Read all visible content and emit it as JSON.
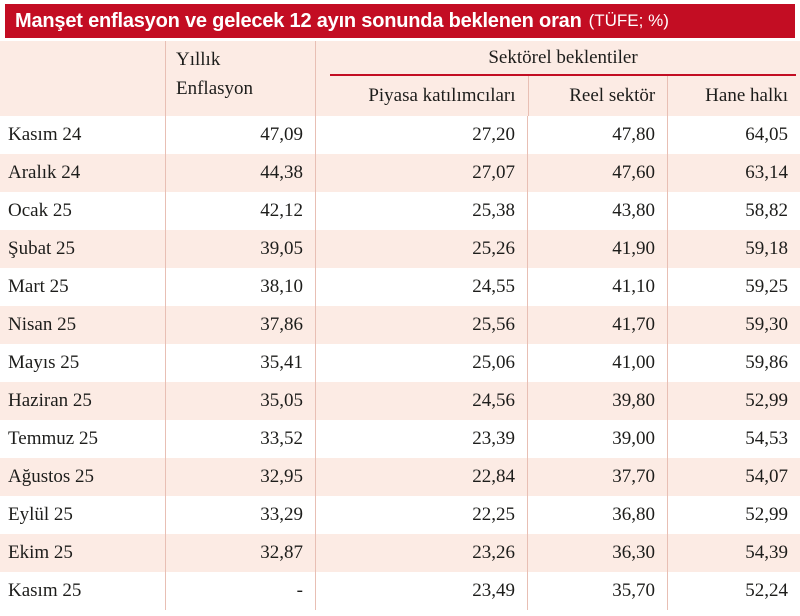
{
  "banner": {
    "title": "Manşet enflasyon ve gelecek 12 ayın sonunda beklenen oran",
    "unit": "(TÜFE; %)"
  },
  "chart_data": {
    "type": "table",
    "title": "Manşet enflasyon ve gelecek 12 ayın sonunda beklenen oran (TÜFE; %)",
    "annual_header": "Yıllık Enflasyon",
    "group_header": "Sektörel beklentiler",
    "sub_headers": [
      "Piyasa katılımcıları",
      "Reel sektör",
      "Hane halkı"
    ],
    "rows": [
      {
        "month": "Kasım 24",
        "annual": "47,09",
        "market_participants": "27,20",
        "real_sector": "47,80",
        "households": "64,05"
      },
      {
        "month": "Aralık 24",
        "annual": "44,38",
        "market_participants": "27,07",
        "real_sector": "47,60",
        "households": "63,14"
      },
      {
        "month": "Ocak 25",
        "annual": "42,12",
        "market_participants": "25,38",
        "real_sector": "43,80",
        "households": "58,82"
      },
      {
        "month": "Şubat 25",
        "annual": "39,05",
        "market_participants": "25,26",
        "real_sector": "41,90",
        "households": "59,18"
      },
      {
        "month": "Mart 25",
        "annual": "38,10",
        "market_participants": "24,55",
        "real_sector": "41,10",
        "households": "59,25"
      },
      {
        "month": "Nisan 25",
        "annual": "37,86",
        "market_participants": "25,56",
        "real_sector": "41,70",
        "households": "59,30"
      },
      {
        "month": "Mayıs 25",
        "annual": "35,41",
        "market_participants": "25,06",
        "real_sector": "41,00",
        "households": "59,86"
      },
      {
        "month": "Haziran 25",
        "annual": "35,05",
        "market_participants": "24,56",
        "real_sector": "39,80",
        "households": "52,99"
      },
      {
        "month": "Temmuz 25",
        "annual": "33,52",
        "market_participants": "23,39",
        "real_sector": "39,00",
        "households": "54,53"
      },
      {
        "month": "Ağustos 25",
        "annual": "32,95",
        "market_participants": "22,84",
        "real_sector": "37,70",
        "households": "54,07"
      },
      {
        "month": "Eylül 25",
        "annual": "33,29",
        "market_participants": "22,25",
        "real_sector": "36,80",
        "households": "52,99"
      },
      {
        "month": "Ekim 25",
        "annual": "32,87",
        "market_participants": "23,26",
        "real_sector": "36,30",
        "households": "54,39"
      },
      {
        "month": "Kasım 25",
        "annual": "-",
        "market_participants": "23,49",
        "real_sector": "35,70",
        "households": "52,24"
      }
    ]
  },
  "colors": {
    "accent_red": "#c30d23",
    "row_pink": "#fcebe4",
    "grid_line": "#e8bfb4",
    "text": "#1d1d1b"
  }
}
